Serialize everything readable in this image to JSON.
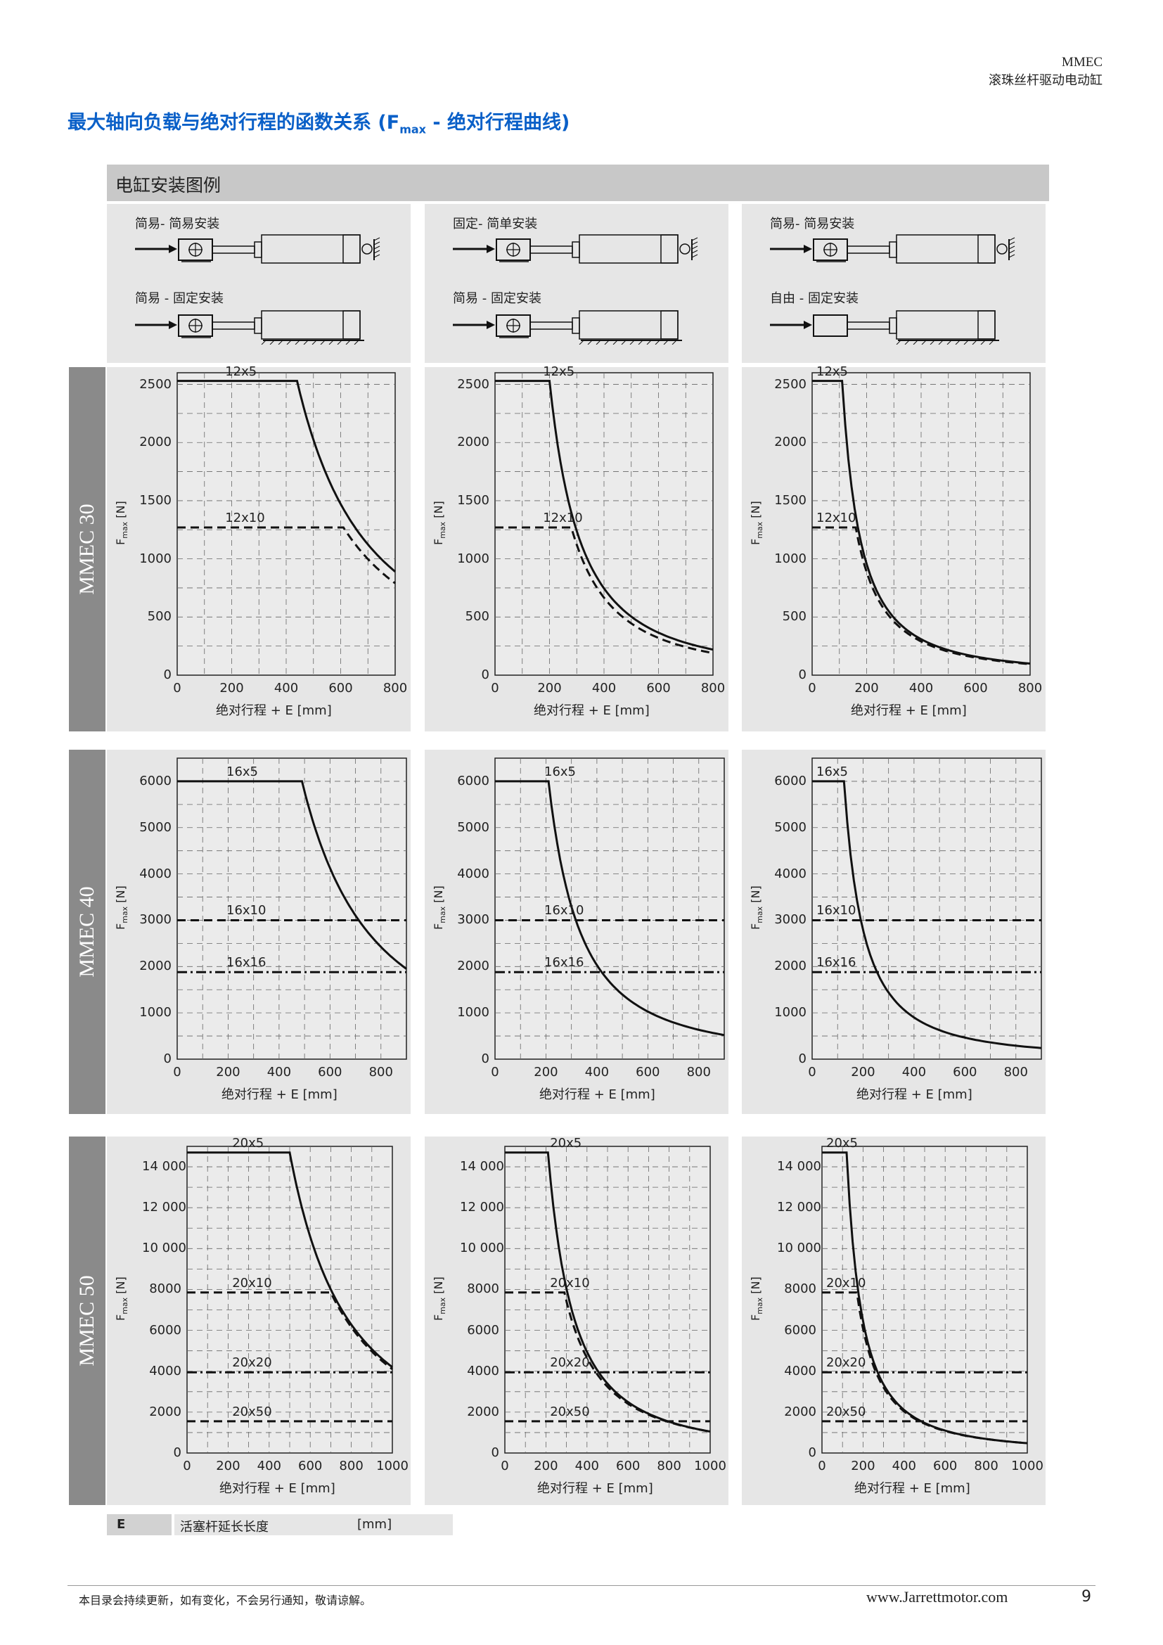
{
  "header": {
    "model": "MMEC",
    "description": "滚珠丝杆驱动电动缸"
  },
  "title": {
    "main": "最大轴向负载与绝对行程的函数关系 (F",
    "sub": "max",
    "tail": " - 绝对行程曲线)"
  },
  "legend_bar": {
    "label": "电缸安装图例"
  },
  "mounting": [
    {
      "top": "简易- 简易安装",
      "bottom": "简易 - 固定安装"
    },
    {
      "top": "固定- 简单安装",
      "bottom": "简易 - 固定安装"
    },
    {
      "top": "简易- 简易安装",
      "bottom": "自由 - 固定安装"
    }
  ],
  "rows": [
    {
      "label": "MMEC 30"
    },
    {
      "label": "MMEC 40"
    },
    {
      "label": "MMEC 50"
    }
  ],
  "axis": {
    "ylabel_main": "F",
    "ylabel_sub": "max",
    "ylabel_unit": " [N]"
  },
  "chart_data": [
    {
      "type": "line",
      "row": "MMEC 30",
      "mounting": "简易- 简易安装 / 简易 - 固定安装",
      "xlabel": "绝对行程 + E      [mm]",
      "xlim": [
        0,
        800
      ],
      "ylim": [
        0,
        2600
      ],
      "xticks": [
        0,
        200,
        400,
        600,
        800
      ],
      "yticks": [
        0,
        500,
        1000,
        1500,
        2000,
        2500
      ],
      "ytick_labels": [
        "0",
        "500",
        "1000",
        "1500",
        "2000",
        "2500"
      ],
      "series": [
        {
          "name": "12x5",
          "style": "solid",
          "flat_value": 2530,
          "knee_x": 440,
          "end_value": 890
        },
        {
          "name": "12x10",
          "style": "dashed",
          "flat_value": 1270,
          "knee_x": 610,
          "end_value": 790
        }
      ]
    },
    {
      "type": "line",
      "row": "MMEC 30",
      "mounting": "固定- 简单安装 / 简易 - 固定安装",
      "xlabel": "绝对行程 + E [mm]",
      "xlim": [
        0,
        800
      ],
      "ylim": [
        0,
        2600
      ],
      "xticks": [
        0,
        200,
        400,
        600,
        800
      ],
      "yticks": [
        0,
        500,
        1000,
        1500,
        2000,
        2500
      ],
      "ytick_labels": [
        "0",
        "500",
        "1000",
        "1500",
        "2000",
        "2500"
      ],
      "series": [
        {
          "name": "12x5",
          "style": "solid",
          "flat_value": 2530,
          "knee_x": 200,
          "end_value": 220
        },
        {
          "name": "12x10",
          "style": "dashed",
          "flat_value": 1270,
          "knee_x": 280,
          "end_value": 190
        }
      ]
    },
    {
      "type": "line",
      "row": "MMEC 30",
      "mounting": "简易- 简易安装 / 自由 - 固定安装",
      "xlabel": "绝对行程 + E      [mm]",
      "xlim": [
        0,
        800
      ],
      "ylim": [
        0,
        2600
      ],
      "xticks": [
        0,
        200,
        400,
        600,
        800
      ],
      "yticks": [
        0,
        500,
        1000,
        1500,
        2000,
        2500
      ],
      "ytick_labels": [
        "0",
        "500",
        "1000",
        "1500",
        "2000",
        "2500"
      ],
      "series": [
        {
          "name": "12x5",
          "style": "solid",
          "flat_value": 2530,
          "knee_x": 110,
          "end_value": 100
        },
        {
          "name": "12x10",
          "style": "dashed",
          "flat_value": 1270,
          "knee_x": 160,
          "end_value": 95
        }
      ]
    },
    {
      "type": "line",
      "row": "MMEC 40",
      "mounting": "简易- 简易安装 / 简易 - 固定安装",
      "xlabel": "绝对行程 + E [mm]",
      "xlim": [
        0,
        900
      ],
      "ylim": [
        0,
        6500
      ],
      "xticks": [
        0,
        200,
        400,
        600,
        800
      ],
      "yticks": [
        0,
        1000,
        2000,
        3000,
        4000,
        5000,
        6000
      ],
      "ytick_labels": [
        "0",
        "1000",
        "2000",
        "3000",
        "4000",
        "5000",
        "6000"
      ],
      "series": [
        {
          "name": "16x5",
          "style": "solid",
          "flat_value": 6000,
          "knee_x": 490,
          "end_value": 1950
        },
        {
          "name": "16x10",
          "style": "dashed",
          "flat_value": 3000
        },
        {
          "name": "16x16",
          "style": "dashdot",
          "flat_value": 1880
        }
      ]
    },
    {
      "type": "line",
      "row": "MMEC 40",
      "mounting": "固定- 简单安装 / 简易 - 固定安装",
      "xlabel": "绝对行程 + E [mm]",
      "xlim": [
        0,
        900
      ],
      "ylim": [
        0,
        6500
      ],
      "xticks": [
        0,
        200,
        400,
        600,
        800
      ],
      "yticks": [
        0,
        1000,
        2000,
        3000,
        4000,
        5000,
        6000
      ],
      "ytick_labels": [
        "0",
        "1000",
        "2000",
        "3000",
        "4000",
        "5000",
        "6000"
      ],
      "series": [
        {
          "name": "16x5",
          "style": "solid",
          "flat_value": 6000,
          "knee_x": 210,
          "end_value": 520
        },
        {
          "name": "16x10",
          "style": "dashed",
          "flat_value": 3000
        },
        {
          "name": "16x16",
          "style": "dashdot",
          "flat_value": 1880
        }
      ]
    },
    {
      "type": "line",
      "row": "MMEC 40",
      "mounting": "简易- 简易安装 / 自由 - 固定安装",
      "xlabel": "绝对行程 + E [mm]",
      "xlim": [
        0,
        900
      ],
      "ylim": [
        0,
        6500
      ],
      "xticks": [
        0,
        200,
        400,
        600,
        800
      ],
      "yticks": [
        0,
        1000,
        2000,
        3000,
        4000,
        5000,
        6000
      ],
      "ytick_labels": [
        "0",
        "1000",
        "2000",
        "3000",
        "4000",
        "5000",
        "6000"
      ],
      "series": [
        {
          "name": "16x5",
          "style": "solid",
          "flat_value": 6000,
          "knee_x": 125,
          "end_value": 240
        },
        {
          "name": "16x10",
          "style": "dashed",
          "flat_value": 3000
        },
        {
          "name": "16x16",
          "style": "dashdot",
          "flat_value": 1880
        }
      ]
    },
    {
      "type": "line",
      "row": "MMEC 50",
      "mounting": "简易- 简易安装 / 简易 - 固定安装",
      "xlabel": "绝对行程 + E [mm]",
      "xlim": [
        0,
        1000
      ],
      "ylim": [
        0,
        15000
      ],
      "xticks": [
        0,
        200,
        400,
        600,
        800,
        1000
      ],
      "yticks": [
        0,
        2000,
        4000,
        6000,
        8000,
        10000,
        12000,
        14000
      ],
      "ytick_labels": [
        "0",
        "2000",
        "4000",
        "6000",
        "8000",
        "10 000",
        "12 000",
        "14 000"
      ],
      "series": [
        {
          "name": "20x5",
          "style": "solid",
          "flat_value": 14700,
          "knee_x": 500,
          "end_value": 4200
        },
        {
          "name": "20x10",
          "style": "dashed",
          "flat_value": 7850,
          "knee_x": 700,
          "end_value": 4100
        },
        {
          "name": "20x20",
          "style": "dashdot",
          "flat_value": 3950
        },
        {
          "name": "20x50",
          "style": "dashed",
          "flat_value": 1550
        }
      ]
    },
    {
      "type": "line",
      "row": "MMEC 50",
      "mounting": "固定- 简单安装 / 简易 - 固定安装",
      "xlabel": "绝对行程 + E [mm]",
      "xlim": [
        0,
        1000
      ],
      "ylim": [
        0,
        15000
      ],
      "xticks": [
        0,
        200,
        400,
        600,
        800,
        1000
      ],
      "yticks": [
        0,
        2000,
        4000,
        6000,
        8000,
        10000,
        12000,
        14000
      ],
      "ytick_labels": [
        "0",
        "2000",
        "4000",
        "6000",
        "8000",
        "10 000",
        "12 000",
        "14 000"
      ],
      "series": [
        {
          "name": "20x5",
          "style": "solid",
          "flat_value": 14700,
          "knee_x": 210,
          "end_value": 1050
        },
        {
          "name": "20x10",
          "style": "dashed",
          "flat_value": 7850,
          "knee_x": 290,
          "end_value": 1050
        },
        {
          "name": "20x20",
          "style": "dashdot",
          "flat_value": 3950
        },
        {
          "name": "20x50",
          "style": "dashed",
          "flat_value": 1550
        }
      ]
    },
    {
      "type": "line",
      "row": "MMEC 50",
      "mounting": "简易- 简易安装 / 自由 - 固定安装",
      "xlabel": "绝对行程 + E [mm]",
      "xlim": [
        0,
        1000
      ],
      "ylim": [
        0,
        15000
      ],
      "xticks": [
        0,
        200,
        400,
        600,
        800,
        1000
      ],
      "yticks": [
        0,
        2000,
        4000,
        6000,
        8000,
        10000,
        12000,
        14000
      ],
      "ytick_labels": [
        "0",
        "2000",
        "4000",
        "6000",
        "8000",
        "10 000",
        "12 000",
        "14 000"
      ],
      "series": [
        {
          "name": "20x5",
          "style": "solid",
          "flat_value": 14700,
          "knee_x": 120,
          "end_value": 480
        },
        {
          "name": "20x10",
          "style": "dashed",
          "flat_value": 7850,
          "knee_x": 170,
          "end_value": 480
        },
        {
          "name": "20x20",
          "style": "dashdot",
          "flat_value": 3950
        },
        {
          "name": "20x50",
          "style": "dashed",
          "flat_value": 1550
        }
      ]
    }
  ],
  "definition": {
    "symbol": "E",
    "text": "活塞杆延长长度",
    "unit": "[mm]"
  },
  "footer": {
    "note": "本目录会持续更新，如有变化，不会另行通知，敬请谅解。",
    "url": "www.Jarrettmotor.com",
    "page": "9"
  }
}
